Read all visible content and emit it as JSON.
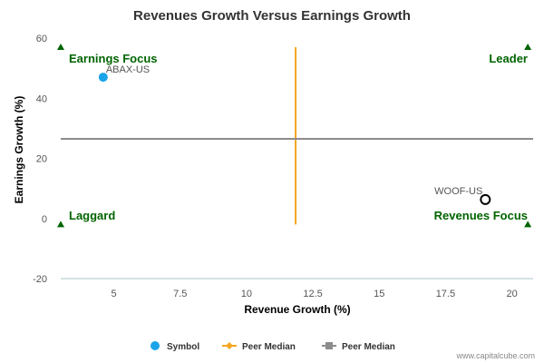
{
  "colors": {
    "symbol": "#1aa3e8",
    "peer_median_x": "#f5a623",
    "peer_median_y": "#8c8c8c",
    "quadrant_text": "#006400",
    "axis_line": "#a9c4cc"
  },
  "credit": "www.capitalcube.com",
  "chart_data": {
    "type": "scatter",
    "title": "Revenues Growth Versus Earnings Growth",
    "xlabel": "Revenue Growth (%)",
    "ylabel": "Earnings Growth (%)",
    "xlim": [
      3,
      20.8
    ],
    "ylim": [
      -20,
      60
    ],
    "x_ticks": [
      {
        "value": 5,
        "label": "5"
      },
      {
        "value": 7.5,
        "label": "7.5"
      },
      {
        "value": 10,
        "label": "10"
      },
      {
        "value": 12.5,
        "label": "12.5"
      },
      {
        "value": 15,
        "label": "15"
      },
      {
        "value": 17.5,
        "label": "17.5"
      },
      {
        "value": 20,
        "label": "20"
      }
    ],
    "y_ticks": [
      {
        "value": -20,
        "label": "-20"
      },
      {
        "value": 0,
        "label": "0"
      },
      {
        "value": 20,
        "label": "20"
      },
      {
        "value": 40,
        "label": "40"
      },
      {
        "value": 60,
        "label": "60"
      }
    ],
    "grid": false,
    "legend_position": "bottom",
    "points": [
      {
        "label": "ABAX-US",
        "x": 4.6,
        "y": 47,
        "style": "filled"
      },
      {
        "label": "WOOF-US",
        "x": 19.0,
        "y": 6.3,
        "style": "hollow"
      }
    ],
    "peer_median_x": {
      "value": 11.85,
      "y_range": [
        -2,
        57
      ]
    },
    "peer_median_y": {
      "value": 26.5,
      "x_range": [
        3,
        20.8
      ]
    },
    "quadrant_labels": [
      {
        "text": "Earnings Focus",
        "corner": "top-left"
      },
      {
        "text": "Leader",
        "corner": "top-right"
      },
      {
        "text": "Laggard",
        "corner": "bottom-left"
      },
      {
        "text": "Revenues Focus",
        "corner": "bottom-right"
      }
    ],
    "corner_markers": [
      {
        "x": 3,
        "y": 57
      },
      {
        "x": 20.6,
        "y": 57
      },
      {
        "x": 3,
        "y": -2
      },
      {
        "x": 20.6,
        "y": -2
      }
    ],
    "legend": [
      {
        "label": "Symbol",
        "kind": "symbol"
      },
      {
        "label": "Peer Median",
        "kind": "peer_median_x"
      },
      {
        "label": "Peer Median",
        "kind": "peer_median_y"
      }
    ]
  }
}
